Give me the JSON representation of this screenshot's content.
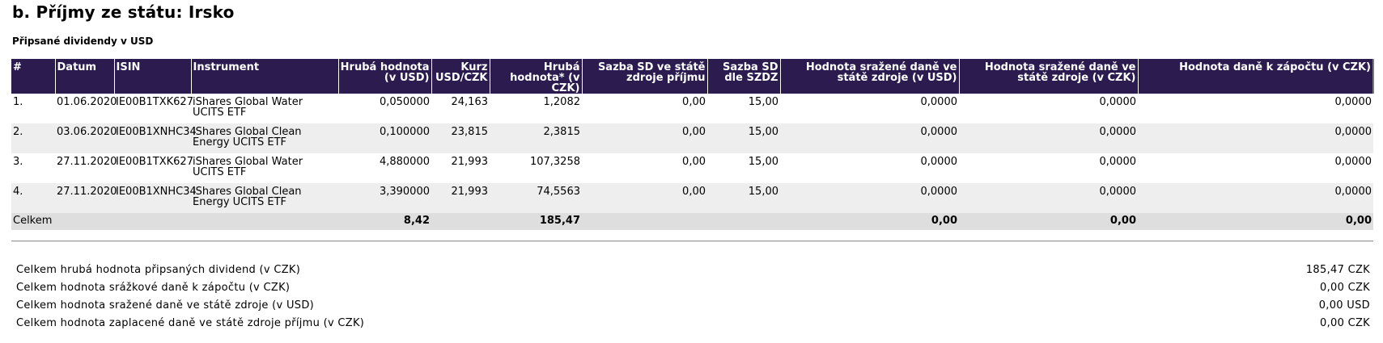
{
  "page": {
    "title": "b. Příjmy ze státu: Irsko",
    "subtitle": "Připsané dividendy v USD"
  },
  "table": {
    "headers": [
      "#",
      "Datum",
      "ISIN",
      "Instrument",
      "Hrubá hodnota (v USD)",
      "Kurz USD/CZK",
      "Hrubá hodnota* (v CZK)",
      "Sazba SD ve státě zdroje příjmu",
      "Sazba SD dle SZDZ",
      "Hodnota sražené daně ve státě zdroje (v USD)",
      "Hodnota sražené daně ve státě zdroje (v CZK)",
      "Hodnota daně k zápočtu (v CZK)"
    ],
    "rows": [
      [
        "1.",
        "01.06.2020",
        "IE00B1TXK627",
        "iShares Global Water UCITS ETF",
        "0,050000",
        "24,163",
        "1,2082",
        "0,00",
        "15,00",
        "0,0000",
        "0,0000",
        "0,0000"
      ],
      [
        "2.",
        "03.06.2020",
        "IE00B1XNHC34",
        "iShares Global Clean Energy UCITS ETF",
        "0,100000",
        "23,815",
        "2,3815",
        "0,00",
        "15,00",
        "0,0000",
        "0,0000",
        "0,0000"
      ],
      [
        "3.",
        "27.11.2020",
        "IE00B1TXK627",
        "iShares Global Water UCITS ETF",
        "4,880000",
        "21,993",
        "107,3258",
        "0,00",
        "15,00",
        "0,0000",
        "0,0000",
        "0,0000"
      ],
      [
        "4.",
        "27.11.2020",
        "IE00B1XNHC34",
        "iShares Global Clean Energy UCITS ETF",
        "3,390000",
        "21,993",
        "74,5563",
        "0,00",
        "15,00",
        "0,0000",
        "0,0000",
        "0,0000"
      ]
    ],
    "total": {
      "label": "Celkem",
      "gross_usd": "8,42",
      "gross_czk": "185,47",
      "withheld_usd": "0,00",
      "withheld_czk": "0,00",
      "credit_czk": "0,00"
    }
  },
  "summary": [
    {
      "label": "Celkem hrubá hodnota připsaných dividend (v CZK)",
      "value": "185,47 CZK"
    },
    {
      "label": "Celkem hodnota srážkové daně k zápočtu (v CZK)",
      "value": "0,00 CZK"
    },
    {
      "label": "Celkem hodnota sražené daně ve státě zdroje (v USD)",
      "value": "0,00 USD"
    },
    {
      "label": "Celkem hodnota zaplacené daně ve státě zdroje příjmu (v CZK)",
      "value": "0,00 CZK"
    }
  ],
  "colors": {
    "header_bg": "#2b1b4f",
    "row_alt_bg": "#eeeeee",
    "total_bg": "#dedede"
  }
}
